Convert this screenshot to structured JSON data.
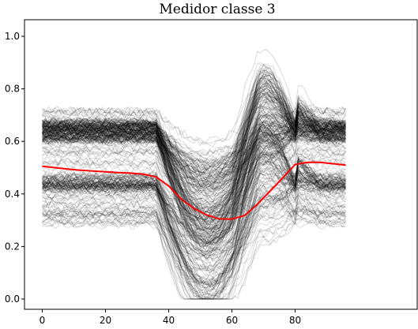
{
  "chart_data": {
    "type": "line",
    "title": "Medidor classe 3",
    "xlabel": "",
    "ylabel": "",
    "xlim": [
      0,
      96
    ],
    "ylim": [
      0.0,
      1.0
    ],
    "x_ticks": [
      0,
      20,
      40,
      60,
      80
    ],
    "y_ticks": [
      0.0,
      0.2,
      0.4,
      0.6,
      0.8,
      1.0
    ],
    "x_tick_labels": [
      "0",
      "20",
      "40",
      "60",
      "80"
    ],
    "y_tick_labels": [
      "0.0",
      "0.2",
      "0.4",
      "0.6",
      "0.8",
      "1.0"
    ],
    "grid": false,
    "legend": false,
    "series": [
      {
        "color": "#ff0000",
        "x": [
          0,
          4,
          8,
          12,
          16,
          20,
          24,
          28,
          32,
          36,
          40,
          44,
          48,
          52,
          56,
          60,
          64,
          68,
          72,
          76,
          80,
          84,
          88,
          92,
          96
        ],
        "values": [
          0.505,
          0.5,
          0.495,
          0.49,
          0.487,
          0.484,
          0.481,
          0.479,
          0.475,
          0.465,
          0.43,
          0.38,
          0.345,
          0.32,
          0.305,
          0.304,
          0.318,
          0.36,
          0.41,
          0.46,
          0.512,
          0.52,
          0.52,
          0.515,
          0.51
        ]
      }
    ],
    "background_series": {
      "color": "#000000",
      "opacity": 0.15,
      "description_count": 300
    }
  }
}
